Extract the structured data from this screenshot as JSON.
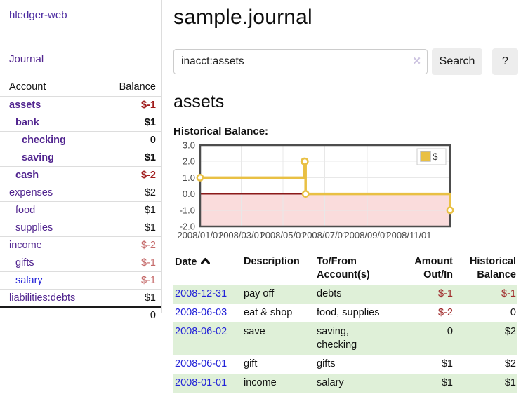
{
  "sidebar": {
    "app_title": "hledger-web",
    "nav": {
      "journal_label": "Journal"
    },
    "accounts_table": {
      "headers": {
        "account": "Account",
        "balance": "Balance"
      },
      "rows": [
        {
          "label": "assets",
          "indent": 1,
          "bold": true,
          "label_color": "purple",
          "balance": "$-1",
          "balance_color": "dark"
        },
        {
          "label": "bank",
          "indent": 2,
          "bold": true,
          "label_color": "purple",
          "balance": "$1",
          "balance_color": "default"
        },
        {
          "label": "checking",
          "indent": 3,
          "bold": true,
          "label_color": "purple",
          "balance": "0",
          "balance_color": "default"
        },
        {
          "label": "saving",
          "indent": 3,
          "bold": true,
          "label_color": "purple",
          "balance": "$1",
          "balance_color": "default"
        },
        {
          "label": "cash",
          "indent": 2,
          "bold": true,
          "label_color": "purple",
          "balance": "$-2",
          "balance_color": "dark"
        },
        {
          "label": "expenses",
          "indent": 1,
          "bold": false,
          "label_color": "purple",
          "balance": "$2",
          "balance_color": "default"
        },
        {
          "label": "food",
          "indent": 2,
          "bold": false,
          "label_color": "purple",
          "balance": "$1",
          "balance_color": "default"
        },
        {
          "label": "supplies",
          "indent": 2,
          "bold": false,
          "label_color": "purple",
          "balance": "$1",
          "balance_color": "default"
        },
        {
          "label": "income",
          "indent": 1,
          "bold": false,
          "label_color": "purple",
          "balance": "$-2",
          "balance_color": "soft"
        },
        {
          "label": "gifts",
          "indent": 2,
          "bold": false,
          "label_color": "purple",
          "balance": "$-1",
          "balance_color": "soft"
        },
        {
          "label": "salary",
          "indent": 2,
          "bold": false,
          "label_color": "blue",
          "balance": "$-1",
          "balance_color": "soft"
        },
        {
          "label": "liabilities:debts",
          "indent": 1,
          "bold": false,
          "label_color": "purple",
          "balance": "$1",
          "balance_color": "default"
        }
      ],
      "total": "0"
    }
  },
  "header": {
    "title": "sample.journal"
  },
  "search": {
    "query": "inacct:assets",
    "clear_label": "✕",
    "button_label": "Search",
    "help_label": "?"
  },
  "register": {
    "heading": "assets",
    "chart_title": "Historical Balance:",
    "table": {
      "headers": {
        "date": "Date",
        "sort_icon": "chevron-up",
        "description": "Description",
        "account_line1": "To/From",
        "account_line2": "Account(s)",
        "amount_line1": "Amount",
        "amount_line2": "Out/In",
        "balance_line1": "Historical",
        "balance_line2": "Balance"
      },
      "rows": [
        {
          "date": "2008-12-31",
          "description": "pay off",
          "accounts": "debts",
          "amount": "$-1",
          "amount_negative": true,
          "balance": "$-1",
          "balance_negative": true
        },
        {
          "date": "2008-06-03",
          "description": "eat & shop",
          "accounts": "food, supplies",
          "amount": "$-2",
          "amount_negative": true,
          "balance": "0",
          "balance_negative": false
        },
        {
          "date": "2008-06-02",
          "description": "save",
          "accounts": "saving,\nchecking",
          "amount": "0",
          "amount_negative": false,
          "balance": "$2",
          "balance_negative": false
        },
        {
          "date": "2008-06-01",
          "description": "gift",
          "accounts": "gifts",
          "amount": "$1",
          "amount_negative": false,
          "balance": "$2",
          "balance_negative": false
        },
        {
          "date": "2008-01-01",
          "description": "income",
          "accounts": "salary",
          "amount": "$1",
          "amount_negative": false,
          "balance": "$1",
          "balance_negative": false
        }
      ]
    }
  },
  "chart_data": {
    "type": "line",
    "title": "Historical Balance:",
    "step": true,
    "series": [
      {
        "name": "$",
        "points": [
          [
            "2008/01/01",
            1.0
          ],
          [
            "2008/06/01",
            2.0
          ],
          [
            "2008/06/02",
            2.0
          ],
          [
            "2008/06/03",
            0.0
          ],
          [
            "2008/12/31",
            -1.0
          ]
        ]
      }
    ],
    "xlim": [
      "2008/01/01",
      "2008/12/31"
    ],
    "ylim": [
      -2.0,
      3.0
    ],
    "x_tick_labels": [
      "2008/01/01",
      "2008/03/01",
      "2008/05/01",
      "2008/07/01",
      "2008/09/01",
      "2008/11/01"
    ],
    "y_tick_labels": [
      "3.0",
      "2.0",
      "1.0",
      "0.0",
      "-1.0",
      "-2.0"
    ],
    "y_ticks": [
      3,
      2,
      1,
      0,
      -1,
      -2
    ],
    "grid": true,
    "legend": {
      "position": "top-right",
      "label": "$"
    },
    "colors": {
      "line": "#e9c044",
      "marker_fill": "#ffffff",
      "negative_fill": "#fadcdc",
      "zero_line": "#8b1a1a",
      "grid": "#e8e8e8",
      "border": "#4d4d4d",
      "tick_text": "#4a4a4a"
    }
  }
}
